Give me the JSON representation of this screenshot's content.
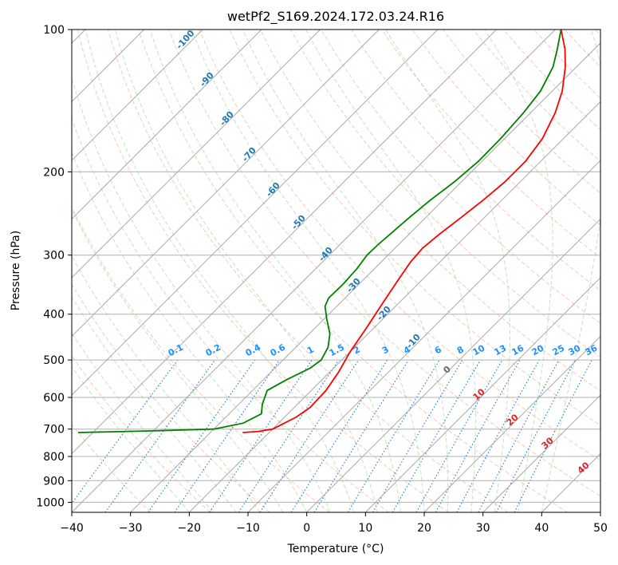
{
  "chart_data": {
    "type": "line",
    "title": "wetPf2_S169.2024.172.03.24.R16",
    "xlabel": "Temperature (°C)",
    "ylabel": "Pressure (hPa)",
    "xlim": [
      -40,
      50
    ],
    "ylim": [
      1050,
      100
    ],
    "y_scale": "log",
    "skew": 35,
    "x_ticks": [
      -40,
      -30,
      -20,
      -10,
      0,
      10,
      20,
      30,
      40,
      50
    ],
    "y_ticks": [
      100,
      200,
      300,
      400,
      500,
      600,
      700,
      800,
      900,
      1000
    ],
    "grid": true,
    "series": [
      {
        "color": "#ff0000",
        "points": [
          {
            "p": 712,
            "t": -24.5
          },
          {
            "p": 708,
            "t": -22
          },
          {
            "p": 700,
            "t": -20
          },
          {
            "p": 660,
            "t": -18
          },
          {
            "p": 630,
            "t": -17.3
          },
          {
            "p": 580,
            "t": -17.5
          },
          {
            "p": 530,
            "t": -18.5
          },
          {
            "p": 480,
            "t": -20
          },
          {
            "p": 430,
            "t": -21.2
          },
          {
            "p": 380,
            "t": -22.7
          },
          {
            "p": 340,
            "t": -24
          },
          {
            "p": 310,
            "t": -25
          },
          {
            "p": 290,
            "t": -25.3
          },
          {
            "p": 270,
            "t": -24.8
          },
          {
            "p": 250,
            "t": -24
          },
          {
            "p": 230,
            "t": -23.2
          },
          {
            "p": 210,
            "t": -22.6
          },
          {
            "p": 190,
            "t": -22.6
          },
          {
            "p": 170,
            "t": -23.6
          },
          {
            "p": 150,
            "t": -25.8
          },
          {
            "p": 135,
            "t": -28.3
          },
          {
            "p": 120,
            "t": -31.9
          },
          {
            "p": 110,
            "t": -35
          },
          {
            "p": 100,
            "t": -39
          }
        ]
      },
      {
        "color": "#008000",
        "points": [
          {
            "p": 712,
            "t": -52.5
          },
          {
            "p": 706,
            "t": -40
          },
          {
            "p": 700,
            "t": -30
          },
          {
            "p": 680,
            "t": -26
          },
          {
            "p": 650,
            "t": -24.5
          },
          {
            "p": 620,
            "t": -26
          },
          {
            "p": 580,
            "t": -27.5
          },
          {
            "p": 550,
            "t": -26
          },
          {
            "p": 520,
            "t": -24
          },
          {
            "p": 500,
            "t": -23.5
          },
          {
            "p": 470,
            "t": -24.5
          },
          {
            "p": 440,
            "t": -26.5
          },
          {
            "p": 410,
            "t": -29.5
          },
          {
            "p": 385,
            "t": -32
          },
          {
            "p": 370,
            "t": -32.8
          },
          {
            "p": 345,
            "t": -32.7
          },
          {
            "p": 320,
            "t": -33
          },
          {
            "p": 300,
            "t": -33.6
          },
          {
            "p": 285,
            "t": -33.5
          },
          {
            "p": 270,
            "t": -33.2
          },
          {
            "p": 250,
            "t": -32.8
          },
          {
            "p": 230,
            "t": -32.2
          },
          {
            "p": 210,
            "t": -31.2
          },
          {
            "p": 190,
            "t": -30.6
          },
          {
            "p": 170,
            "t": -30.7
          },
          {
            "p": 150,
            "t": -31.2
          },
          {
            "p": 135,
            "t": -32
          },
          {
            "p": 120,
            "t": -34
          },
          {
            "p": 110,
            "t": -36.3
          },
          {
            "p": 100,
            "t": -39
          }
        ]
      }
    ],
    "isotherm_labels": [
      "-100",
      "-90",
      "-80",
      "-70",
      "-60",
      "-50",
      "-40",
      "-30",
      "-20",
      "-10"
    ],
    "mixing_ratio_labels": [
      "0.1",
      "0.2",
      "0.4",
      "0.6",
      "1",
      "1.5",
      "2",
      "3",
      "4",
      "6",
      "8",
      "10",
      "13",
      "16",
      "20",
      "25",
      "30",
      "36"
    ],
    "theta_labels": [
      "0",
      "10",
      "20",
      "30",
      "40"
    ]
  }
}
